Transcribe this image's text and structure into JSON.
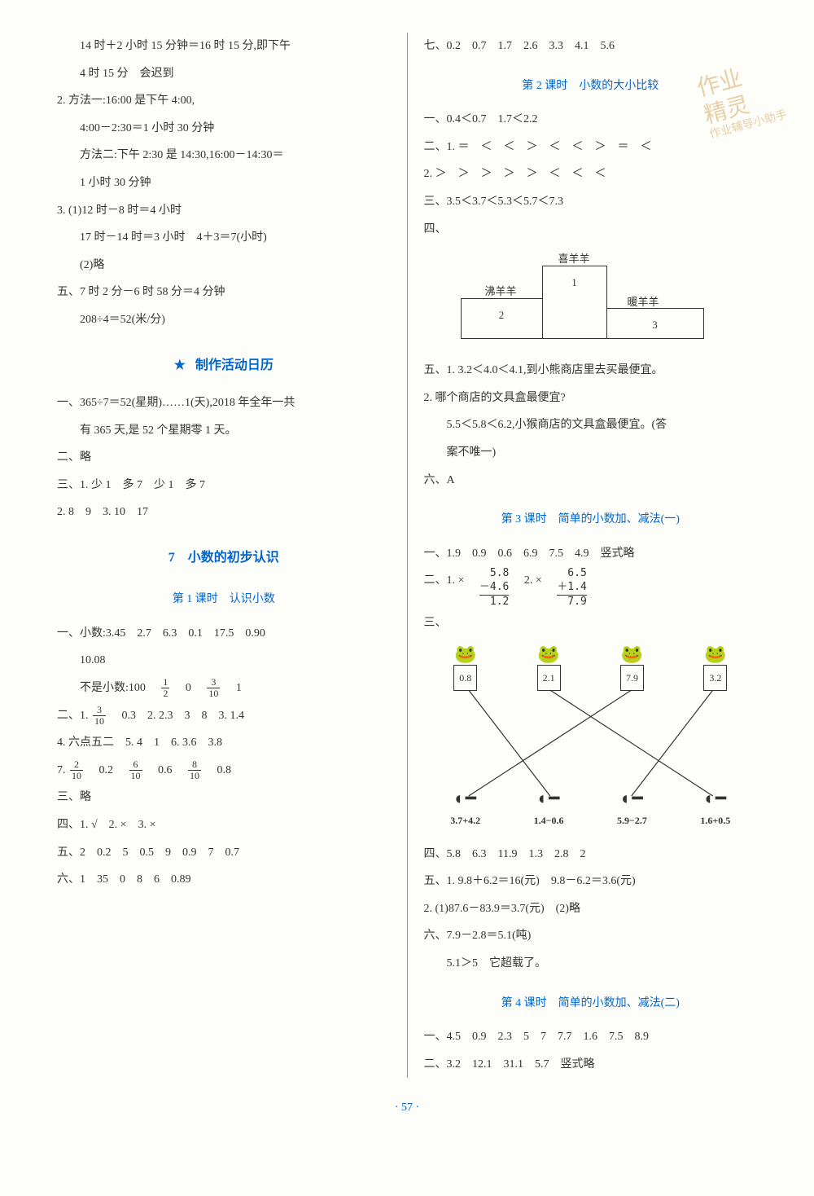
{
  "watermark": {
    "l1": "作业",
    "l2": "精灵",
    "l3": "作业辅导小助手"
  },
  "left": {
    "a1": "14 时＋2 小时 15 分钟＝16 时 15 分,即下午",
    "a2": "4 时 15 分　会迟到",
    "a3": "2. 方法一:16:00 是下午 4:00,",
    "a4": "4:00－2:30＝1 小时 30 分钟",
    "a5": "方法二:下午 2:30 是 14:30,16:00－14:30＝",
    "a6": "1 小时 30 分钟",
    "a7": "3. (1)12 时－8 时＝4 小时",
    "a8": "17 时－14 时＝3 小时　4＋3＝7(小时)",
    "a9": "(2)略",
    "a10": "五、7 时 2 分－6 时 58 分＝4 分钟",
    "a11": "208÷4＝52(米/分)",
    "sec1": "制作活动日历",
    "b1": "一、365÷7＝52(星期)……1(天),2018 年全年一共",
    "b2": "有 365 天,是 52 个星期零 1 天。",
    "b3": "二、略",
    "b4": "三、1. 少 1　多 7　少 1　多 7",
    "b5": "2. 8　9　3. 10　17",
    "sec2": "7　小数的初步认识",
    "les1": "第 1 课时　认识小数",
    "c1": "一、小数:3.45　2.7　6.3　0.1　17.5　0.90",
    "c2": "10.08",
    "c3a": "不是小数:100　",
    "c3b": "　0　",
    "c3c": "　1",
    "frac1n": "1",
    "frac1d": "2",
    "frac2n": "3",
    "frac2d": "10",
    "d1a": "二、1. ",
    "d1b": "　0.3　2. 2.3　3　8　3. 1.4",
    "frac3n": "3",
    "frac3d": "10",
    "d2": "4. 六点五二　5. 4　1　6. 3.6　3.8",
    "d3a": "7. ",
    "d3b": "　0.2　",
    "d3c": "　0.6　",
    "d3d": "　0.8",
    "frac4n": "2",
    "frac4d": "10",
    "frac5n": "6",
    "frac5d": "10",
    "frac6n": "8",
    "frac6d": "10",
    "d4": "三、略",
    "d5": "四、1. √　2. ×　3. ×",
    "d6": "五、2　0.2　5　0.5　9　0.9　7　0.7",
    "d7": "六、1　35　0　8　6　0.89"
  },
  "right": {
    "e1": "七、0.2　0.7　1.7　2.6　3.3　4.1　5.6",
    "les2": "第 2 课时　小数的大小比较",
    "f1": "一、0.4＜0.7　1.7＜2.2",
    "f2": "二、1. ＝　＜　＜　＞　＜　＜　＞　＝　＜",
    "f3": "2. ＞　＞　＞　＞　＞　＜　＜　＜",
    "f4": "三、3.5＜3.7＜5.3＜5.7＜7.3",
    "f5": "四、",
    "podium": {
      "top_label": "喜羊羊",
      "top_num": "1",
      "left_label": "沸羊羊",
      "left_num": "2",
      "right_label": "暖羊羊",
      "right_num": "3"
    },
    "g1": "五、1. 3.2＜4.0＜4.1,到小熊商店里去买最便宜。",
    "g2": "2. 哪个商店的文具盒最便宜?",
    "g3": "5.5＜5.8＜6.2,小猴商店的文具盒最便宜。(答",
    "g4": "案不唯一)",
    "g5": "六、A",
    "les3": "第 3 课时　简单的小数加、减法(一)",
    "h1": "一、1.9　0.9　0.6　6.9　7.5　4.9　竖式略",
    "h2": "二、1. ×",
    "calc1": {
      "a": "5.8",
      "b": "－4.6",
      "r": "1.2"
    },
    "h2b": "2. ×",
    "calc2": {
      "a": "6.5",
      "b": "＋1.4",
      "r": "7.9"
    },
    "h3": "三、",
    "frogs": [
      "0.8",
      "2.1",
      "7.9",
      "3.2"
    ],
    "tads": [
      "3.7+4.2",
      "1.4−0.6",
      "5.9−2.7",
      "1.6+0.5"
    ],
    "edges": [
      [
        0,
        1
      ],
      [
        1,
        3
      ],
      [
        2,
        0
      ],
      [
        3,
        2
      ]
    ],
    "i1": "四、5.8　6.3　11.9　1.3　2.8　2",
    "i2": "五、1. 9.8＋6.2＝16(元)　9.8－6.2＝3.6(元)",
    "i3": "2. (1)87.6－83.9＝3.7(元)　(2)略",
    "i4": "六、7.9－2.8＝5.1(吨)",
    "i5": "5.1＞5　它超载了。",
    "les4": "第 4 课时　简单的小数加、减法(二)",
    "j1": "一、4.5　0.9　2.3　5　7　7.7　1.6　7.5　8.9",
    "j2": "二、3.2　12.1　31.1　5.7　竖式略"
  },
  "pagenum": "· 57 ·"
}
